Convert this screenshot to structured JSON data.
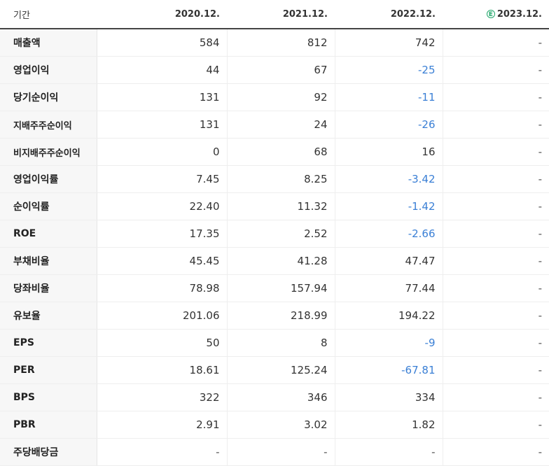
{
  "header": {
    "label": "기간",
    "estimate_mark": "E",
    "years": [
      "2020.12.",
      "2021.12.",
      "2022.12.",
      "2023.12."
    ]
  },
  "rows": [
    {
      "key": "revenue",
      "label": "매출액",
      "values": [
        "584",
        "812",
        "742",
        "-"
      ]
    },
    {
      "key": "operating-profit",
      "label": "영업이익",
      "values": [
        "44",
        "67",
        "-25",
        "-"
      ]
    },
    {
      "key": "net-income",
      "label": "당기순이익",
      "values": [
        "131",
        "92",
        "-11",
        "-"
      ]
    },
    {
      "key": "controlling-net-income",
      "label": "지배주주순이익",
      "values": [
        "131",
        "24",
        "-26",
        "-"
      ]
    },
    {
      "key": "noncontrolling-net-income",
      "label": "비지배주주순이익",
      "values": [
        "0",
        "68",
        "16",
        "-"
      ]
    },
    {
      "key": "operating-margin",
      "label": "영업이익률",
      "values": [
        "7.45",
        "8.25",
        "-3.42",
        "-"
      ]
    },
    {
      "key": "net-margin",
      "label": "순이익률",
      "values": [
        "22.40",
        "11.32",
        "-1.42",
        "-"
      ]
    },
    {
      "key": "roe",
      "label": "ROE",
      "values": [
        "17.35",
        "2.52",
        "-2.66",
        "-"
      ]
    },
    {
      "key": "debt-ratio",
      "label": "부채비율",
      "values": [
        "45.45",
        "41.28",
        "47.47",
        "-"
      ]
    },
    {
      "key": "quick-ratio",
      "label": "당좌비율",
      "values": [
        "78.98",
        "157.94",
        "77.44",
        "-"
      ]
    },
    {
      "key": "reserve-ratio",
      "label": "유보율",
      "values": [
        "201.06",
        "218.99",
        "194.22",
        "-"
      ]
    },
    {
      "key": "eps",
      "label": "EPS",
      "values": [
        "50",
        "8",
        "-9",
        "-"
      ]
    },
    {
      "key": "per",
      "label": "PER",
      "values": [
        "18.61",
        "125.24",
        "-67.81",
        "-"
      ]
    },
    {
      "key": "bps",
      "label": "BPS",
      "values": [
        "322",
        "346",
        "334",
        "-"
      ]
    },
    {
      "key": "pbr",
      "label": "PBR",
      "values": [
        "2.91",
        "3.02",
        "1.82",
        "-"
      ]
    },
    {
      "key": "dividend-per-share",
      "label": "주당배당금",
      "values": [
        "-",
        "-",
        "-",
        "-"
      ]
    }
  ],
  "colors": {
    "negative": "#3a7fd5",
    "estimate": "#22a76b",
    "label_bg": "#f7f7f7"
  }
}
